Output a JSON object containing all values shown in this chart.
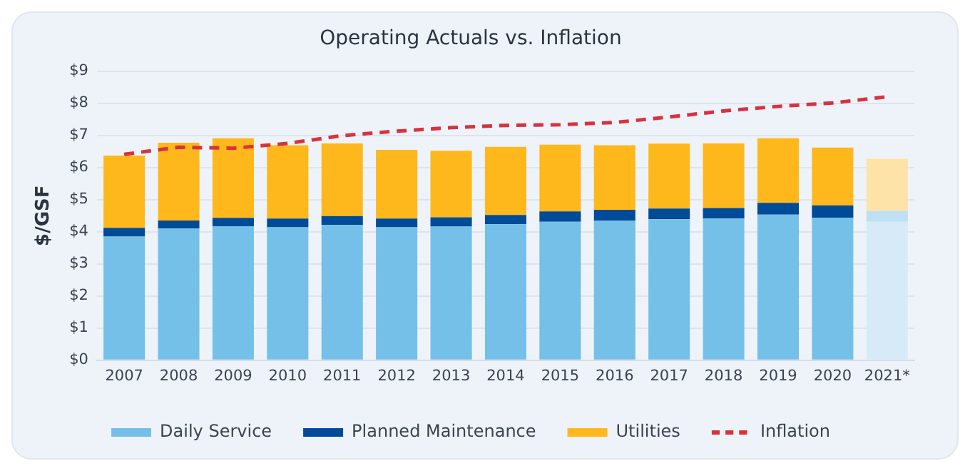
{
  "chart_data": {
    "type": "bar",
    "title": "Operating Actuals vs. Inflation",
    "ylabel": "$/GSF",
    "categories": [
      "2007",
      "2008",
      "2009",
      "2010",
      "2011",
      "2012",
      "2013",
      "2014",
      "2015",
      "2016",
      "2017",
      "2018",
      "2019",
      "2020",
      "2021*"
    ],
    "series": [
      {
        "name": "Daily Service",
        "color": "#74c0e8",
        "colors": [
          "#74c0e8",
          "#74c0e8",
          "#74c0e8",
          "#74c0e8",
          "#74c0e8",
          "#74c0e8",
          "#74c0e8",
          "#74c0e8",
          "#74c0e8",
          "#74c0e8",
          "#74c0e8",
          "#74c0e8",
          "#74c0e8",
          "#74c0e8",
          "#d6ebf7"
        ],
        "values": [
          3.85,
          4.1,
          4.17,
          4.14,
          4.21,
          4.14,
          4.16,
          4.23,
          4.31,
          4.35,
          4.39,
          4.41,
          4.53,
          4.43,
          4.31
        ]
      },
      {
        "name": "Planned Maintenance",
        "color": "#004b97",
        "colors": [
          "#004b97",
          "#004b97",
          "#004b97",
          "#004b97",
          "#004b97",
          "#004b97",
          "#004b97",
          "#004b97",
          "#004b97",
          "#004b97",
          "#004b97",
          "#004b97",
          "#004b97",
          "#004b97",
          "#bfe0f2"
        ],
        "values": [
          0.27,
          0.25,
          0.26,
          0.27,
          0.28,
          0.27,
          0.29,
          0.29,
          0.32,
          0.33,
          0.33,
          0.33,
          0.37,
          0.39,
          0.34
        ]
      },
      {
        "name": "Utilities",
        "color": "#ffb81c",
        "colors": [
          "#ffb81c",
          "#ffb81c",
          "#ffb81c",
          "#ffb81c",
          "#ffb81c",
          "#ffb81c",
          "#ffb81c",
          "#ffb81c",
          "#ffb81c",
          "#ffb81c",
          "#ffb81c",
          "#ffb81c",
          "#ffb81c",
          "#ffb81c",
          "#fde3a8"
        ],
        "values": [
          2.25,
          2.42,
          2.48,
          2.28,
          2.26,
          2.14,
          2.07,
          2.12,
          2.08,
          2.01,
          2.02,
          2.01,
          2.01,
          1.8,
          1.62
        ]
      },
      {
        "name": "Inflation",
        "type": "line",
        "color": "#d6333f",
        "line_style": "dashed",
        "values": [
          6.41,
          6.63,
          6.6,
          6.75,
          6.99,
          7.13,
          7.24,
          7.31,
          7.33,
          7.4,
          7.57,
          7.76,
          7.9,
          8.01,
          8.2
        ]
      }
    ],
    "stacked": true,
    "marker": "none",
    "grid": "y",
    "legend": "bottom",
    "ylim": [
      0,
      9
    ],
    "yticks": [
      {
        "value": 0,
        "label": "$0"
      },
      {
        "value": 1,
        "label": "$1"
      },
      {
        "value": 2,
        "label": "$2"
      },
      {
        "value": 3,
        "label": "$3"
      },
      {
        "value": 4,
        "label": "$4"
      },
      {
        "value": 5,
        "label": "$5"
      },
      {
        "value": 6,
        "label": "$6"
      },
      {
        "value": 7,
        "label": "$7"
      },
      {
        "value": 8,
        "label": "$8"
      },
      {
        "value": 9,
        "label": "$9"
      }
    ]
  }
}
